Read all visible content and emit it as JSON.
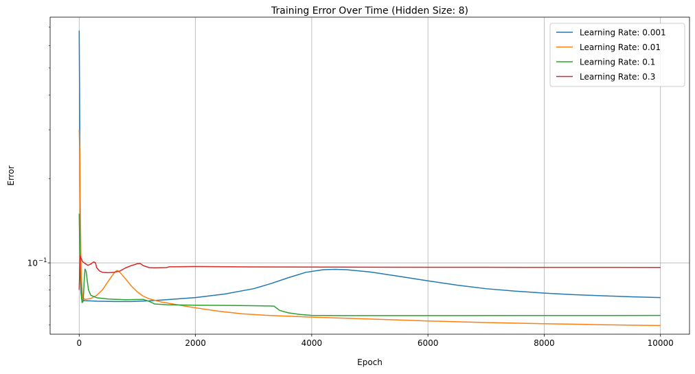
{
  "chart_data": {
    "type": "line",
    "title": "Training Error Over Time (Hidden Size: 8)",
    "xlabel": "Epoch",
    "ylabel": "Error",
    "xlim": [
      -500,
      10500
    ],
    "ylim": [
      0.0555,
      0.76
    ],
    "yscale": "log",
    "xticks": [
      0,
      2000,
      4000,
      6000,
      8000,
      10000
    ],
    "xtick_labels": [
      "0",
      "2000",
      "4000",
      "6000",
      "8000",
      "10000"
    ],
    "ytick_major": [
      0.1
    ],
    "ytick_major_labels": [
      "10",
      "−1"
    ],
    "ytick_minor": [
      0.06,
      0.07,
      0.08,
      0.09,
      0.2,
      0.3,
      0.4,
      0.5,
      0.6,
      0.7
    ],
    "grid": true,
    "legend_position": "top-right",
    "series": [
      {
        "name": "Learning Rate: 0.001",
        "color": "#1f77b4",
        "points": [
          [
            0,
            0.68
          ],
          [
            10,
            0.3
          ],
          [
            20,
            0.12
          ],
          [
            35,
            0.08
          ],
          [
            50,
            0.0735
          ],
          [
            100,
            0.0732
          ],
          [
            300,
            0.0729
          ],
          [
            600,
            0.0727
          ],
          [
            900,
            0.0727
          ],
          [
            1200,
            0.0731
          ],
          [
            1500,
            0.0738
          ],
          [
            2000,
            0.0751
          ],
          [
            2500,
            0.0773
          ],
          [
            3000,
            0.0808
          ],
          [
            3300,
            0.0843
          ],
          [
            3600,
            0.0885
          ],
          [
            3900,
            0.0925
          ],
          [
            4200,
            0.0945
          ],
          [
            4400,
            0.0948
          ],
          [
            4600,
            0.0945
          ],
          [
            5000,
            0.0928
          ],
          [
            5500,
            0.0895
          ],
          [
            6000,
            0.0862
          ],
          [
            6500,
            0.0832
          ],
          [
            7000,
            0.0808
          ],
          [
            7500,
            0.0792
          ],
          [
            8000,
            0.0779
          ],
          [
            8500,
            0.0769
          ],
          [
            9000,
            0.0762
          ],
          [
            9500,
            0.0756
          ],
          [
            10000,
            0.0751
          ]
        ]
      },
      {
        "name": "Learning Rate: 0.01",
        "color": "#ff7f0e",
        "points": [
          [
            0,
            0.3
          ],
          [
            10,
            0.25
          ],
          [
            20,
            0.15
          ],
          [
            35,
            0.09
          ],
          [
            60,
            0.075
          ],
          [
            100,
            0.074
          ],
          [
            200,
            0.0745
          ],
          [
            300,
            0.0765
          ],
          [
            400,
            0.08
          ],
          [
            500,
            0.086
          ],
          [
            600,
            0.092
          ],
          [
            650,
            0.094
          ],
          [
            700,
            0.0925
          ],
          [
            800,
            0.0875
          ],
          [
            900,
            0.0825
          ],
          [
            1000,
            0.0787
          ],
          [
            1100,
            0.076
          ],
          [
            1200,
            0.0744
          ],
          [
            1400,
            0.0725
          ],
          [
            1600,
            0.0713
          ],
          [
            1800,
            0.0701
          ],
          [
            2000,
            0.069
          ],
          [
            2400,
            0.0671
          ],
          [
            2800,
            0.0657
          ],
          [
            3200,
            0.0649
          ],
          [
            3600,
            0.0644
          ],
          [
            4000,
            0.0639
          ],
          [
            4500,
            0.0634
          ],
          [
            5000,
            0.0629
          ],
          [
            5500,
            0.0624
          ],
          [
            6000,
            0.0619
          ],
          [
            6500,
            0.0615
          ],
          [
            7000,
            0.0611
          ],
          [
            7500,
            0.0608
          ],
          [
            8000,
            0.0605
          ],
          [
            8500,
            0.0603
          ],
          [
            9000,
            0.06
          ],
          [
            9500,
            0.0598
          ],
          [
            10000,
            0.0596
          ]
        ]
      },
      {
        "name": "Learning Rate: 0.1",
        "color": "#2ca02c",
        "points": [
          [
            0,
            0.15
          ],
          [
            15,
            0.1
          ],
          [
            30,
            0.078
          ],
          [
            50,
            0.072
          ],
          [
            70,
            0.073
          ],
          [
            85,
            0.086
          ],
          [
            100,
            0.095
          ],
          [
            120,
            0.093
          ],
          [
            140,
            0.086
          ],
          [
            160,
            0.08
          ],
          [
            200,
            0.0765
          ],
          [
            300,
            0.075
          ],
          [
            500,
            0.0742
          ],
          [
            800,
            0.0738
          ],
          [
            1100,
            0.074
          ],
          [
            1200,
            0.0728
          ],
          [
            1300,
            0.0712
          ],
          [
            1500,
            0.0708
          ],
          [
            2000,
            0.0705
          ],
          [
            2500,
            0.0704
          ],
          [
            3000,
            0.0702
          ],
          [
            3350,
            0.07
          ],
          [
            3450,
            0.0675
          ],
          [
            3600,
            0.0662
          ],
          [
            3800,
            0.0653
          ],
          [
            4000,
            0.0648
          ],
          [
            4500,
            0.0647
          ],
          [
            10000,
            0.0648
          ]
        ]
      },
      {
        "name": "Learning Rate: 0.3",
        "color": "#d62728",
        "points": [
          [
            0,
            0.08
          ],
          [
            15,
            0.106
          ],
          [
            30,
            0.104
          ],
          [
            60,
            0.101
          ],
          [
            100,
            0.0995
          ],
          [
            150,
            0.098
          ],
          [
            200,
            0.099
          ],
          [
            250,
            0.1008
          ],
          [
            280,
            0.1
          ],
          [
            300,
            0.0962
          ],
          [
            350,
            0.0935
          ],
          [
            400,
            0.0925
          ],
          [
            500,
            0.0922
          ],
          [
            600,
            0.0925
          ],
          [
            700,
            0.0935
          ],
          [
            800,
            0.096
          ],
          [
            900,
            0.0978
          ],
          [
            1000,
            0.0993
          ],
          [
            1050,
            0.0995
          ],
          [
            1100,
            0.0978
          ],
          [
            1200,
            0.0962
          ],
          [
            1300,
            0.096
          ],
          [
            1500,
            0.0962
          ],
          [
            1550,
            0.0968
          ],
          [
            2000,
            0.097
          ],
          [
            3000,
            0.0967
          ],
          [
            5000,
            0.0965
          ],
          [
            7000,
            0.0964
          ],
          [
            10000,
            0.0963
          ]
        ]
      }
    ]
  }
}
